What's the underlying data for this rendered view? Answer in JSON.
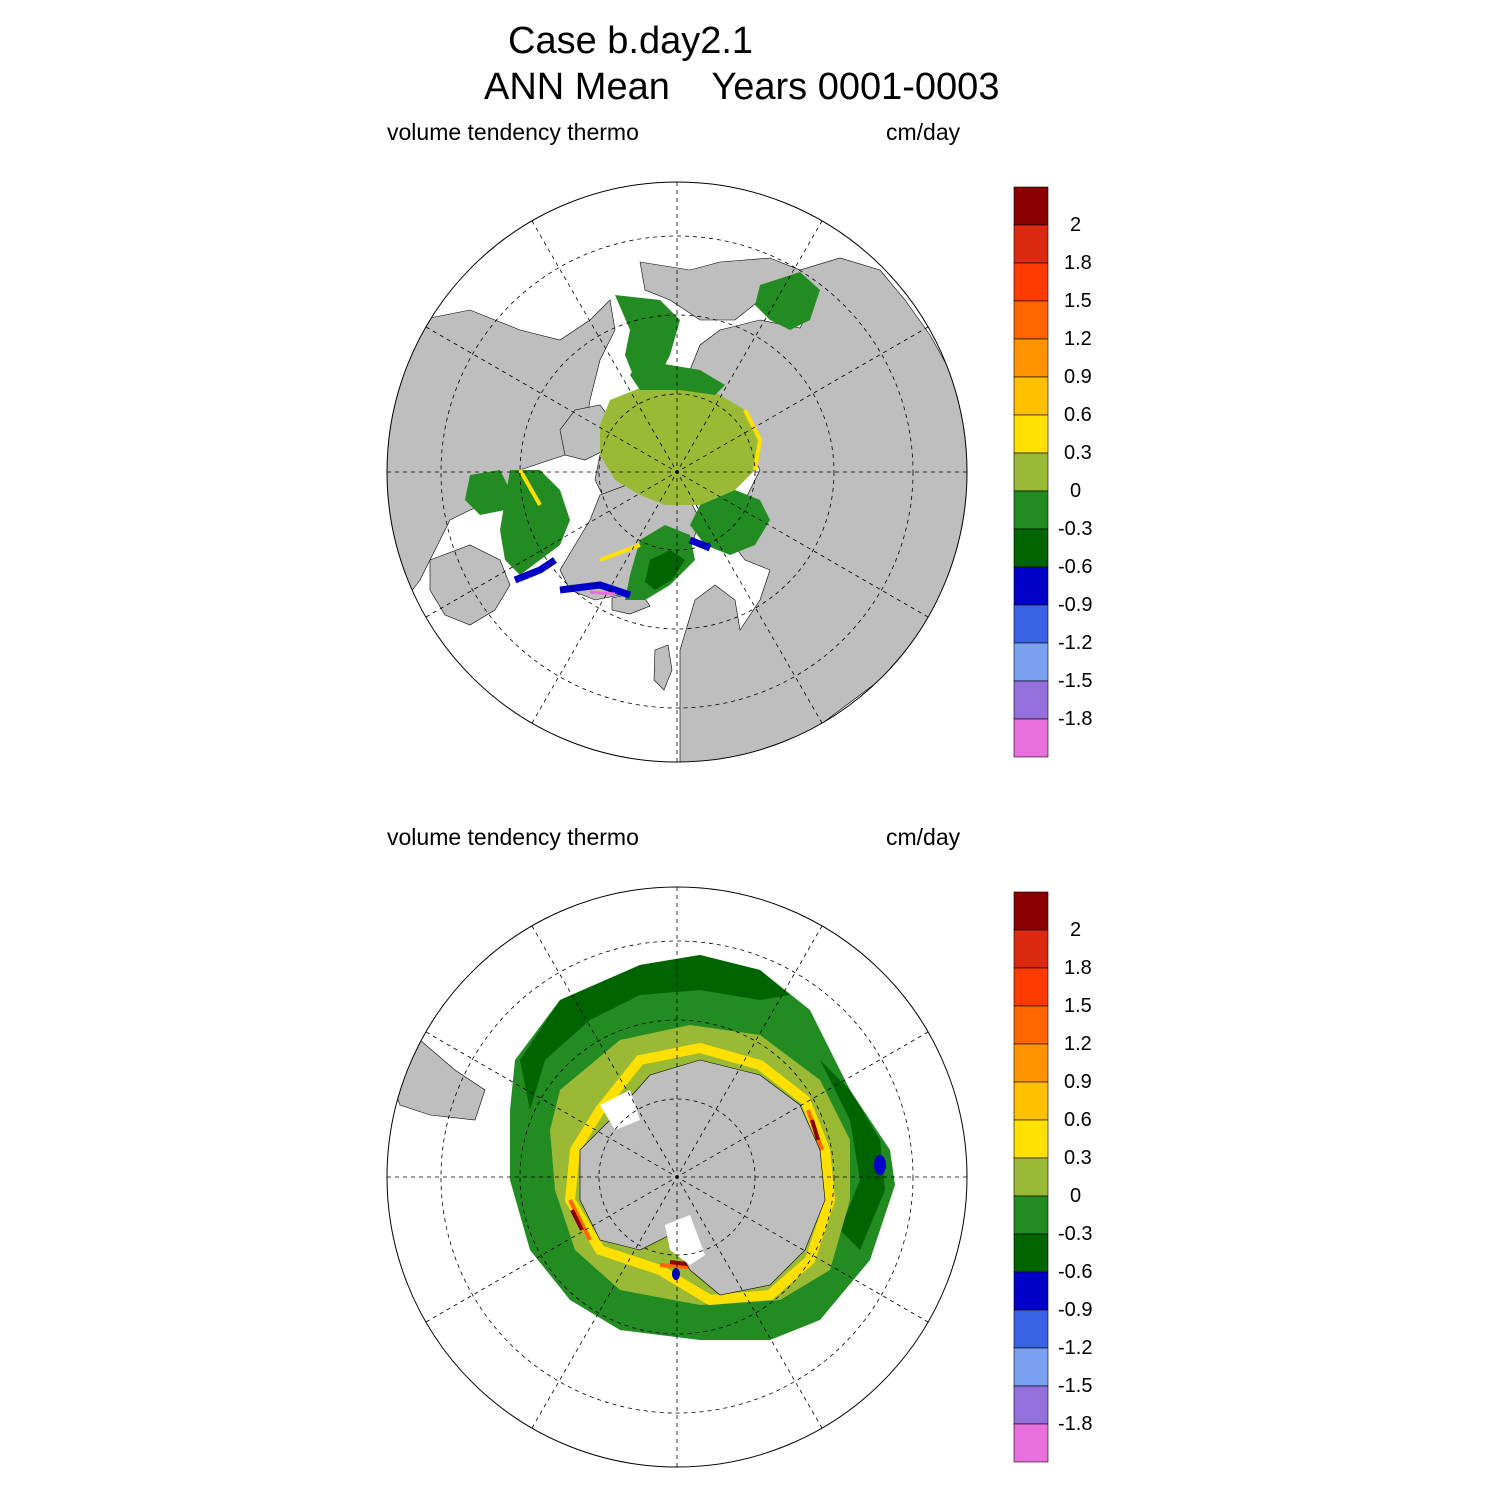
{
  "title": {
    "line1": "Case b.day2.1",
    "line2": "ANN Mean    Years 0001-0003"
  },
  "panels": [
    {
      "name": "north",
      "hemisphere": "Northern",
      "left_label": "volume tendency thermo",
      "right_label": "cm/day"
    },
    {
      "name": "south",
      "hemisphere": "Southern",
      "left_label": "volume tendency thermo",
      "right_label": "cm/day"
    }
  ],
  "colorbar": {
    "labels": [
      "2",
      "1.8",
      "1.5",
      "1.2",
      "0.9",
      "0.6",
      "0.3",
      "0",
      "-0.3",
      "-0.6",
      "-0.9",
      "-1.2",
      "-1.5",
      "-1.8"
    ],
    "colors": [
      "#8b0000",
      "#dc2a12",
      "#ff3a00",
      "#ff6600",
      "#ff9400",
      "#ffc000",
      "#ffe000",
      "#9aba35",
      "#228b22",
      "#006400",
      "#0000c8",
      "#3a62e4",
      "#7aa0f2",
      "#9370db",
      "#e870dc"
    ]
  },
  "map_colors": {
    "land": "#bebebe",
    "ice_mean": "#9aba35",
    "ice_negative": "#228b22",
    "ice_strong_negative": "#006400"
  }
}
